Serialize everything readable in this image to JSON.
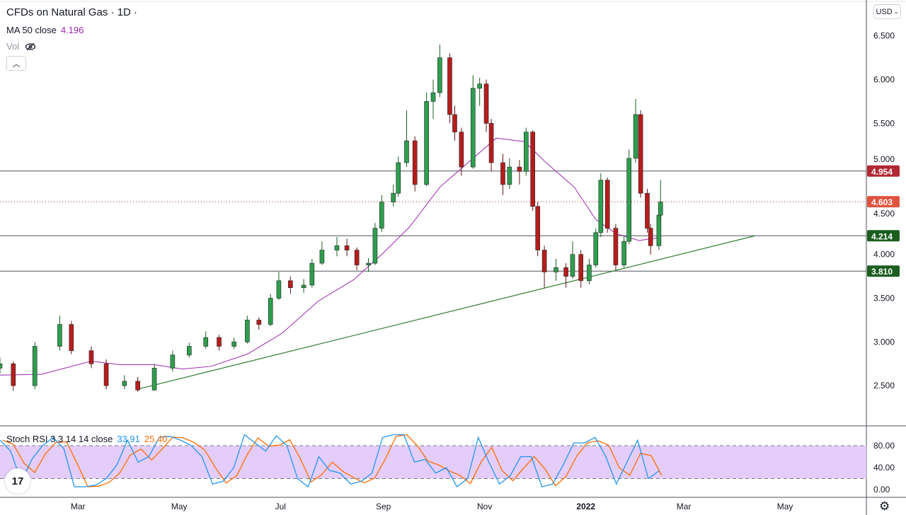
{
  "header": {
    "title": "CFDs on Natural Gas · 1D ·",
    "ma_label": "MA 50 close",
    "ma_value": "4.196",
    "vol_label": "Vol",
    "vol_icon": "eye-crossed-icon",
    "collapse_icon": "chevron-up-icon"
  },
  "currency_button": "USD",
  "stoch": {
    "label": "Stoch RSI 3 3 14 14 close",
    "k_value": "33.91",
    "d_value": "25.40",
    "ticks": [
      "80.00",
      "40.00",
      "0.00"
    ]
  },
  "colors": {
    "up": "#26a69a",
    "up_body": "#1b7d3a",
    "down": "#b71c1c",
    "ma": "#9c27b0",
    "resistance": "#b22833",
    "support": "#1b5e20",
    "trend": "#2e7d32",
    "last_price": "#e0533f",
    "k": "#2196f3",
    "d": "#ff6d00",
    "band": "#e1c8fb"
  },
  "chart_data": {
    "type": "candlestick",
    "title": "CFDs on Natural Gas",
    "interval": "1D",
    "currency": "USD",
    "ylim": [
      2.04,
      6.91
    ],
    "xlim": [
      "2021-01-13",
      "2022-06-19"
    ],
    "price_ticks": [
      "6.500",
      "6.000",
      "5.500",
      "5.000",
      "4.500",
      "4.000",
      "3.500",
      "3.000",
      "2.500"
    ],
    "time_ticks": [
      {
        "date": "2021-03-01",
        "label": "Mar"
      },
      {
        "date": "2021-05-01",
        "label": "May"
      },
      {
        "date": "2021-07-01",
        "label": "Jul"
      },
      {
        "date": "2021-09-01",
        "label": "Sep"
      },
      {
        "date": "2021-11-01",
        "label": "Nov"
      },
      {
        "date": "2022-01-01",
        "label": "2022"
      },
      {
        "date": "2022-03-01",
        "label": "Mar"
      },
      {
        "date": "2022-05-01",
        "label": "May"
      }
    ],
    "candles": [
      [
        "2021-01-13",
        2.7,
        2.82,
        2.64,
        2.75
      ],
      [
        "2021-01-21",
        2.75,
        2.78,
        2.44,
        2.5
      ],
      [
        "2021-02-03",
        2.5,
        3.0,
        2.46,
        2.95
      ],
      [
        "2021-02-18",
        2.95,
        3.3,
        2.9,
        3.2
      ],
      [
        "2021-02-25",
        3.2,
        3.24,
        2.86,
        2.9
      ],
      [
        "2021-03-09",
        2.9,
        2.95,
        2.7,
        2.75
      ],
      [
        "2021-03-18",
        2.75,
        2.8,
        2.46,
        2.5
      ],
      [
        "2021-03-29",
        2.5,
        2.62,
        2.46,
        2.55
      ],
      [
        "2021-04-06",
        2.55,
        2.6,
        2.43,
        2.45
      ],
      [
        "2021-04-16",
        2.45,
        2.75,
        2.44,
        2.7
      ],
      [
        "2021-04-27",
        2.7,
        2.9,
        2.66,
        2.85
      ],
      [
        "2021-05-07",
        2.85,
        2.99,
        2.82,
        2.95
      ],
      [
        "2021-05-17",
        2.95,
        3.12,
        2.92,
        3.05
      ],
      [
        "2021-05-25",
        3.05,
        3.08,
        2.9,
        2.95
      ],
      [
        "2021-06-03",
        2.95,
        3.05,
        2.92,
        3.0
      ],
      [
        "2021-06-11",
        3.0,
        3.3,
        2.98,
        3.25
      ],
      [
        "2021-06-18",
        3.25,
        3.28,
        3.14,
        3.2
      ],
      [
        "2021-06-25",
        3.2,
        3.55,
        3.18,
        3.5
      ],
      [
        "2021-06-30",
        3.5,
        3.8,
        3.48,
        3.7
      ],
      [
        "2021-07-07",
        3.7,
        3.75,
        3.55,
        3.62
      ],
      [
        "2021-07-15",
        3.62,
        3.72,
        3.56,
        3.65
      ],
      [
        "2021-07-20",
        3.65,
        3.95,
        3.62,
        3.9
      ],
      [
        "2021-07-26",
        3.9,
        4.15,
        3.88,
        4.05
      ],
      [
        "2021-08-04",
        4.05,
        4.2,
        3.98,
        4.1
      ],
      [
        "2021-08-10",
        4.1,
        4.18,
        3.98,
        4.05
      ],
      [
        "2021-08-16",
        4.05,
        4.08,
        3.82,
        3.88
      ],
      [
        "2021-08-23",
        3.88,
        3.96,
        3.8,
        3.9
      ],
      [
        "2021-08-27",
        3.9,
        4.36,
        3.88,
        4.3
      ],
      [
        "2021-08-31",
        4.3,
        4.68,
        4.26,
        4.6
      ],
      [
        "2021-09-07",
        4.6,
        4.8,
        4.55,
        4.7
      ],
      [
        "2021-09-10",
        4.7,
        5.12,
        4.66,
        5.05
      ],
      [
        "2021-09-15",
        5.05,
        5.65,
        5.0,
        5.3
      ],
      [
        "2021-09-20",
        5.3,
        5.35,
        4.72,
        4.8
      ],
      [
        "2021-09-27",
        4.8,
        5.85,
        4.78,
        5.75
      ],
      [
        "2021-10-01",
        5.75,
        6.0,
        5.55,
        5.85
      ],
      [
        "2021-10-05",
        5.85,
        6.4,
        5.8,
        6.25
      ],
      [
        "2021-10-11",
        6.25,
        6.3,
        5.5,
        5.6
      ],
      [
        "2021-10-14",
        5.6,
        5.7,
        5.3,
        5.4
      ],
      [
        "2021-10-18",
        5.4,
        5.45,
        4.9,
        5.0
      ],
      [
        "2021-10-25",
        5.0,
        6.05,
        4.98,
        5.9
      ],
      [
        "2021-10-29",
        5.9,
        6.02,
        5.7,
        5.95
      ],
      [
        "2021-11-02",
        5.95,
        6.0,
        5.4,
        5.5
      ],
      [
        "2021-11-05",
        5.5,
        5.55,
        4.95,
        5.05
      ],
      [
        "2021-11-12",
        5.05,
        5.15,
        4.68,
        4.8
      ],
      [
        "2021-11-16",
        4.8,
        5.1,
        4.75,
        5.0
      ],
      [
        "2021-11-22",
        5.0,
        5.08,
        4.8,
        4.95
      ],
      [
        "2021-11-26",
        4.95,
        5.45,
        4.9,
        5.4
      ],
      [
        "2021-11-30",
        5.4,
        5.42,
        4.5,
        4.55
      ],
      [
        "2021-12-03",
        4.55,
        4.6,
        3.98,
        4.05
      ],
      [
        "2021-12-07",
        4.05,
        4.1,
        3.62,
        3.8
      ],
      [
        "2021-12-14",
        3.8,
        3.95,
        3.7,
        3.85
      ],
      [
        "2021-12-20",
        3.85,
        3.9,
        3.62,
        3.75
      ],
      [
        "2021-12-24",
        3.75,
        4.15,
        3.72,
        4.0
      ],
      [
        "2021-12-29",
        4.0,
        4.05,
        3.62,
        3.7
      ],
      [
        "2022-01-03",
        3.7,
        3.95,
        3.66,
        3.88
      ],
      [
        "2022-01-07",
        3.88,
        4.3,
        3.85,
        4.25
      ],
      [
        "2022-01-10",
        4.25,
        4.93,
        4.2,
        4.85
      ],
      [
        "2022-01-14",
        4.85,
        4.88,
        4.25,
        4.3
      ],
      [
        "2022-01-19",
        4.3,
        4.35,
        3.82,
        3.88
      ],
      [
        "2022-01-24",
        3.88,
        4.22,
        3.85,
        4.15
      ],
      [
        "2022-01-27",
        4.15,
        5.2,
        4.12,
        5.1
      ],
      [
        "2022-01-31",
        5.1,
        5.78,
        5.05,
        5.6
      ],
      [
        "2022-02-03",
        5.6,
        5.65,
        4.65,
        4.7
      ],
      [
        "2022-02-07",
        4.7,
        4.75,
        4.25,
        4.3
      ],
      [
        "2022-02-09",
        4.3,
        4.35,
        4.0,
        4.1
      ],
      [
        "2022-02-14",
        4.1,
        4.5,
        4.05,
        4.45
      ],
      [
        "2022-02-15",
        4.45,
        4.85,
        4.4,
        4.6
      ]
    ],
    "ma50": {
      "name": "MA 50 close",
      "points": [
        [
          "2021-01-13",
          2.62
        ],
        [
          "2021-02-07",
          2.63
        ],
        [
          "2021-03-09",
          2.78
        ],
        [
          "2021-03-26",
          2.74
        ],
        [
          "2021-04-16",
          2.74
        ],
        [
          "2021-05-03",
          2.69
        ],
        [
          "2021-05-20",
          2.72
        ],
        [
          "2021-06-11",
          2.86
        ],
        [
          "2021-07-02",
          3.1
        ],
        [
          "2021-07-24",
          3.47
        ],
        [
          "2021-08-14",
          3.71
        ],
        [
          "2021-08-31",
          4.0
        ],
        [
          "2021-09-17",
          4.32
        ],
        [
          "2021-10-05",
          4.77
        ],
        [
          "2021-10-22",
          5.05
        ],
        [
          "2021-11-08",
          5.33
        ],
        [
          "2021-11-25",
          5.29
        ],
        [
          "2021-12-08",
          5.05
        ],
        [
          "2021-12-25",
          4.77
        ],
        [
          "2022-01-07",
          4.4
        ],
        [
          "2022-01-19",
          4.24
        ],
        [
          "2022-02-02",
          4.16
        ],
        [
          "2022-02-15",
          4.196
        ]
      ]
    },
    "horizontal_lines": [
      {
        "price": 4.954,
        "label": "4.954",
        "style": "resistance"
      },
      {
        "price": 4.214,
        "label": "4.214",
        "style": "support"
      },
      {
        "price": 3.81,
        "label": "3.810",
        "style": "support"
      }
    ],
    "last_price": {
      "price": 4.603,
      "label": "4.603"
    },
    "trendline": [
      [
        "2021-04-06",
        2.46
      ],
      [
        "2022-04-13",
        4.214
      ]
    ],
    "stoch_rsi": {
      "ylim": [
        0,
        100
      ],
      "bands": [
        20,
        80
      ],
      "range": [
        "2021-01-13",
        "2022-02-14"
      ],
      "k_values": [
        90,
        70,
        15,
        55,
        80,
        95,
        75,
        5,
        5,
        8,
        20,
        45,
        90,
        50,
        60,
        95,
        97,
        90,
        80,
        60,
        10,
        15,
        40,
        100,
        85,
        70,
        98,
        80,
        20,
        5,
        60,
        35,
        30,
        10,
        15,
        30,
        95,
        100,
        100,
        50,
        55,
        30,
        40,
        5,
        20,
        95,
        50,
        10,
        25,
        60,
        60,
        5,
        10,
        45,
        85,
        85,
        95,
        60,
        10,
        50,
        90,
        20,
        33.91
      ]
    }
  }
}
